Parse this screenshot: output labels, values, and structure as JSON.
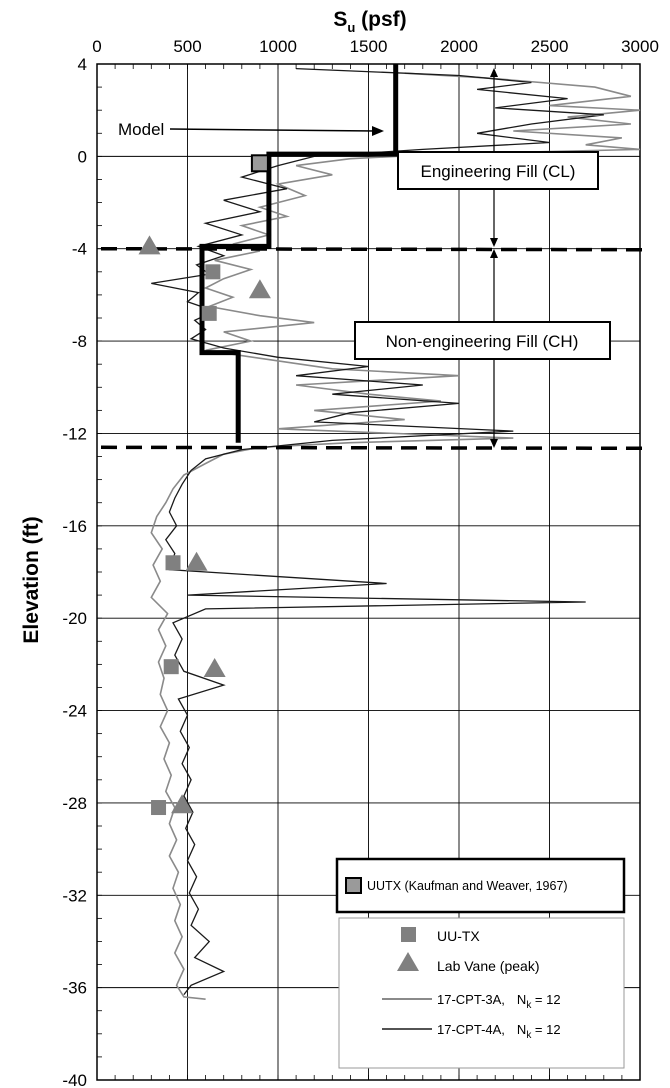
{
  "chart_data": {
    "type": "line",
    "xlabel_main": "S",
    "xlabel_sub": "u",
    "xlabel_unit": " (psf)",
    "ylabel": "Elevation (ft)",
    "xlim": [
      0,
      3000
    ],
    "ylim": [
      -40,
      4
    ],
    "x_ticks": [
      0,
      500,
      1000,
      1500,
      2000,
      2500,
      3000
    ],
    "y_ticks": [
      4,
      0,
      -4,
      -8,
      -12,
      -16,
      -20,
      -24,
      -28,
      -32,
      -36,
      -40
    ],
    "grid": true,
    "layer_boundaries": [
      -4,
      -12.6
    ],
    "annotations": {
      "model": "Model",
      "layer1": "Engineering Fill (CL)",
      "layer2": "Non-engineering Fill (CH)"
    },
    "legend_top": {
      "label": "UUTX (Kaufman and Weaver, 1967)"
    },
    "legend": {
      "uutx": "UU-TX",
      "vane": "Lab Vane (peak)",
      "cpt3a_name": "17-CPT-3A,",
      "cpt4a_name": "17-CPT-4A,",
      "nk_sym": "N",
      "nk_sub": "k",
      "nk_val": " = 12"
    },
    "series": [
      {
        "name": "Model",
        "color": "#000000",
        "points": [
          [
            1650,
            4
          ],
          [
            1650,
            0.1
          ],
          [
            950,
            0.1
          ],
          [
            950,
            -3.9
          ],
          [
            580,
            -3.9
          ],
          [
            580,
            -8.5
          ],
          [
            780,
            -8.5
          ],
          [
            780,
            -12.4
          ]
        ]
      },
      {
        "name": "17-CPT-3A",
        "color": "#8a8a8a",
        "points": [
          [
            1700,
            3.6
          ],
          [
            2150,
            3.4
          ],
          [
            2750,
            3.0
          ],
          [
            2950,
            2.6
          ],
          [
            2500,
            2.2
          ],
          [
            3000,
            2.0
          ],
          [
            2600,
            1.7
          ],
          [
            2950,
            1.4
          ],
          [
            2300,
            1.1
          ],
          [
            2900,
            0.8
          ],
          [
            2700,
            0.5
          ],
          [
            3000,
            0.3
          ],
          [
            1900,
            0.1
          ],
          [
            1400,
            -0.1
          ],
          [
            1100,
            -0.4
          ],
          [
            1300,
            -0.8
          ],
          [
            1000,
            -1.2
          ],
          [
            1150,
            -1.7
          ],
          [
            900,
            -2.2
          ],
          [
            1050,
            -2.6
          ],
          [
            800,
            -3.0
          ],
          [
            950,
            -3.4
          ],
          [
            750,
            -3.8
          ],
          [
            900,
            -4.1
          ],
          [
            650,
            -4.5
          ],
          [
            850,
            -4.9
          ],
          [
            700,
            -5.3
          ],
          [
            600,
            -5.7
          ],
          [
            750,
            -6.1
          ],
          [
            620,
            -6.5
          ],
          [
            900,
            -6.9
          ],
          [
            1200,
            -7.2
          ],
          [
            700,
            -7.6
          ],
          [
            850,
            -8.0
          ],
          [
            600,
            -8.4
          ],
          [
            950,
            -8.8
          ],
          [
            1300,
            -9.2
          ],
          [
            2000,
            -9.5
          ],
          [
            1100,
            -9.9
          ],
          [
            1500,
            -10.3
          ],
          [
            1900,
            -10.6
          ],
          [
            1200,
            -11.0
          ],
          [
            1700,
            -11.4
          ],
          [
            1000,
            -11.8
          ],
          [
            2300,
            -12.2
          ],
          [
            1400,
            -12.4
          ],
          [
            900,
            -12.6
          ],
          [
            700,
            -12.9
          ],
          [
            600,
            -13.3
          ],
          [
            480,
            -13.8
          ],
          [
            420,
            -14.4
          ],
          [
            380,
            -15.0
          ],
          [
            330,
            -15.6
          ],
          [
            300,
            -16.3
          ],
          [
            360,
            -17.0
          ],
          [
            310,
            -17.7
          ],
          [
            350,
            -18.4
          ],
          [
            300,
            -19.1
          ],
          [
            390,
            -19.8
          ],
          [
            340,
            -20.5
          ],
          [
            380,
            -21.2
          ],
          [
            340,
            -21.9
          ],
          [
            370,
            -22.6
          ],
          [
            350,
            -23.3
          ],
          [
            390,
            -24.0
          ],
          [
            350,
            -24.7
          ],
          [
            400,
            -25.4
          ],
          [
            370,
            -26.1
          ],
          [
            410,
            -26.8
          ],
          [
            380,
            -27.5
          ],
          [
            430,
            -28.2
          ],
          [
            400,
            -28.9
          ],
          [
            440,
            -29.6
          ],
          [
            400,
            -30.3
          ],
          [
            450,
            -31.0
          ],
          [
            420,
            -31.7
          ],
          [
            460,
            -32.4
          ],
          [
            430,
            -33.1
          ],
          [
            470,
            -33.8
          ],
          [
            430,
            -34.5
          ],
          [
            480,
            -35.2
          ],
          [
            440,
            -35.9
          ],
          [
            480,
            -36.4
          ],
          [
            600,
            -36.5
          ]
        ]
      },
      {
        "name": "17-CPT-4A",
        "color": "#1a1a1a",
        "points": [
          [
            1100,
            3.8
          ],
          [
            2000,
            3.5
          ],
          [
            2400,
            3.2
          ],
          [
            2100,
            2.9
          ],
          [
            2600,
            2.5
          ],
          [
            2200,
            2.1
          ],
          [
            2800,
            1.8
          ],
          [
            2400,
            1.4
          ],
          [
            2100,
            1.0
          ],
          [
            2500,
            0.6
          ],
          [
            1800,
            0.3
          ],
          [
            1200,
            0.0
          ],
          [
            1000,
            -0.4
          ],
          [
            800,
            -0.9
          ],
          [
            1050,
            -1.4
          ],
          [
            700,
            -1.9
          ],
          [
            900,
            -2.4
          ],
          [
            600,
            -2.9
          ],
          [
            800,
            -3.4
          ],
          [
            560,
            -3.9
          ],
          [
            700,
            -4.3
          ],
          [
            550,
            -4.7
          ],
          [
            620,
            -5.1
          ],
          [
            300,
            -5.5
          ],
          [
            560,
            -5.9
          ],
          [
            500,
            -6.3
          ],
          [
            650,
            -6.7
          ],
          [
            540,
            -7.1
          ],
          [
            600,
            -7.5
          ],
          [
            520,
            -7.9
          ],
          [
            700,
            -8.3
          ],
          [
            1000,
            -8.7
          ],
          [
            1500,
            -9.1
          ],
          [
            1100,
            -9.5
          ],
          [
            1800,
            -9.9
          ],
          [
            1300,
            -10.3
          ],
          [
            2000,
            -10.7
          ],
          [
            1400,
            -11.1
          ],
          [
            1200,
            -11.5
          ],
          [
            2300,
            -11.9
          ],
          [
            1300,
            -12.3
          ],
          [
            800,
            -12.7
          ],
          [
            600,
            -13.1
          ],
          [
            520,
            -13.6
          ],
          [
            470,
            -14.2
          ],
          [
            430,
            -14.8
          ],
          [
            400,
            -15.4
          ],
          [
            440,
            -16.0
          ],
          [
            380,
            -16.6
          ],
          [
            430,
            -17.2
          ],
          [
            400,
            -17.9
          ],
          [
            1600,
            -18.5
          ],
          [
            500,
            -19.0
          ],
          [
            2700,
            -19.3
          ],
          [
            600,
            -19.6
          ],
          [
            420,
            -20.2
          ],
          [
            470,
            -20.9
          ],
          [
            430,
            -21.6
          ],
          [
            480,
            -22.3
          ],
          [
            700,
            -22.9
          ],
          [
            450,
            -23.5
          ],
          [
            500,
            -24.2
          ],
          [
            460,
            -24.9
          ],
          [
            510,
            -25.6
          ],
          [
            470,
            -26.3
          ],
          [
            520,
            -27.0
          ],
          [
            480,
            -27.7
          ],
          [
            530,
            -28.4
          ],
          [
            490,
            -29.1
          ],
          [
            540,
            -29.8
          ],
          [
            500,
            -30.5
          ],
          [
            550,
            -31.2
          ],
          [
            510,
            -31.9
          ],
          [
            560,
            -32.6
          ],
          [
            520,
            -33.3
          ],
          [
            620,
            -34.0
          ],
          [
            540,
            -34.7
          ],
          [
            700,
            -35.3
          ],
          [
            520,
            -35.9
          ],
          [
            480,
            -36.3
          ]
        ]
      }
    ],
    "markers": {
      "uutx_kw": [
        [
          900,
          -0.3
        ]
      ],
      "uutx": [
        [
          640,
          -5.0
        ],
        [
          620,
          -6.8
        ],
        [
          420,
          -17.6
        ],
        [
          410,
          -22.1
        ],
        [
          340,
          -28.2
        ]
      ],
      "vane": [
        [
          290,
          -3.9
        ],
        [
          900,
          -5.8
        ],
        [
          550,
          -17.6
        ],
        [
          650,
          -22.2
        ],
        [
          470,
          -28.1
        ]
      ]
    }
  }
}
